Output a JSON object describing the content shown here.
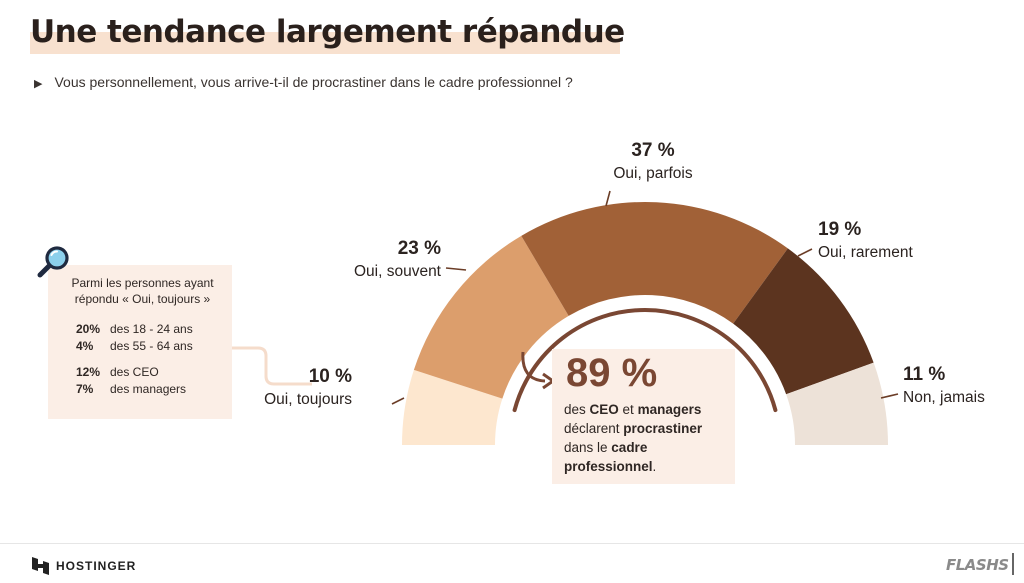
{
  "header": {
    "title": "Une tendance largement répandue",
    "question": "Vous personnellement, vous arrive-t-il de procrastiner dans le cadre professionnel ?"
  },
  "chart_data": {
    "type": "pie",
    "shape": "half-donut",
    "categories": [
      "Oui, toujours",
      "Oui, souvent",
      "Oui, parfois",
      "Oui, rarement",
      "Non, jamais"
    ],
    "values": [
      10,
      23,
      37,
      19,
      11
    ],
    "value_labels": [
      "10 %",
      "23 %",
      "37 %",
      "19 %",
      "11 %"
    ],
    "colors": [
      "#fde7cf",
      "#dc9e6c",
      "#a16137",
      "#5c341f",
      "#ede2d8"
    ],
    "accent_color": "#7a4733"
  },
  "infobox": {
    "icon": "magnifier-icon",
    "intro": "Parmi les personnes ayant répondu « Oui, toujours »",
    "rows": [
      {
        "pct": "20%",
        "label": "des 18 - 24 ans"
      },
      {
        "pct": "4%",
        "label": "des 55 - 64 ans"
      },
      {
        "pct": "12%",
        "label": "des CEO"
      },
      {
        "pct": "7%",
        "label": "des managers"
      }
    ]
  },
  "callout": {
    "value": "89 %",
    "parts": [
      {
        "text": "des ",
        "bold": false
      },
      {
        "text": "CEO",
        "bold": true
      },
      {
        "text": " et ",
        "bold": false
      },
      {
        "text": "managers",
        "bold": true
      },
      {
        "text": " déclarent ",
        "bold": false
      },
      {
        "text": "procrastiner",
        "bold": true
      },
      {
        "text": " dans le ",
        "bold": false
      },
      {
        "text": "cadre professionnel",
        "bold": true
      },
      {
        "text": ".",
        "bold": false
      }
    ]
  },
  "footer": {
    "brand": "HOSTINGER",
    "tag": "FLASHS"
  }
}
